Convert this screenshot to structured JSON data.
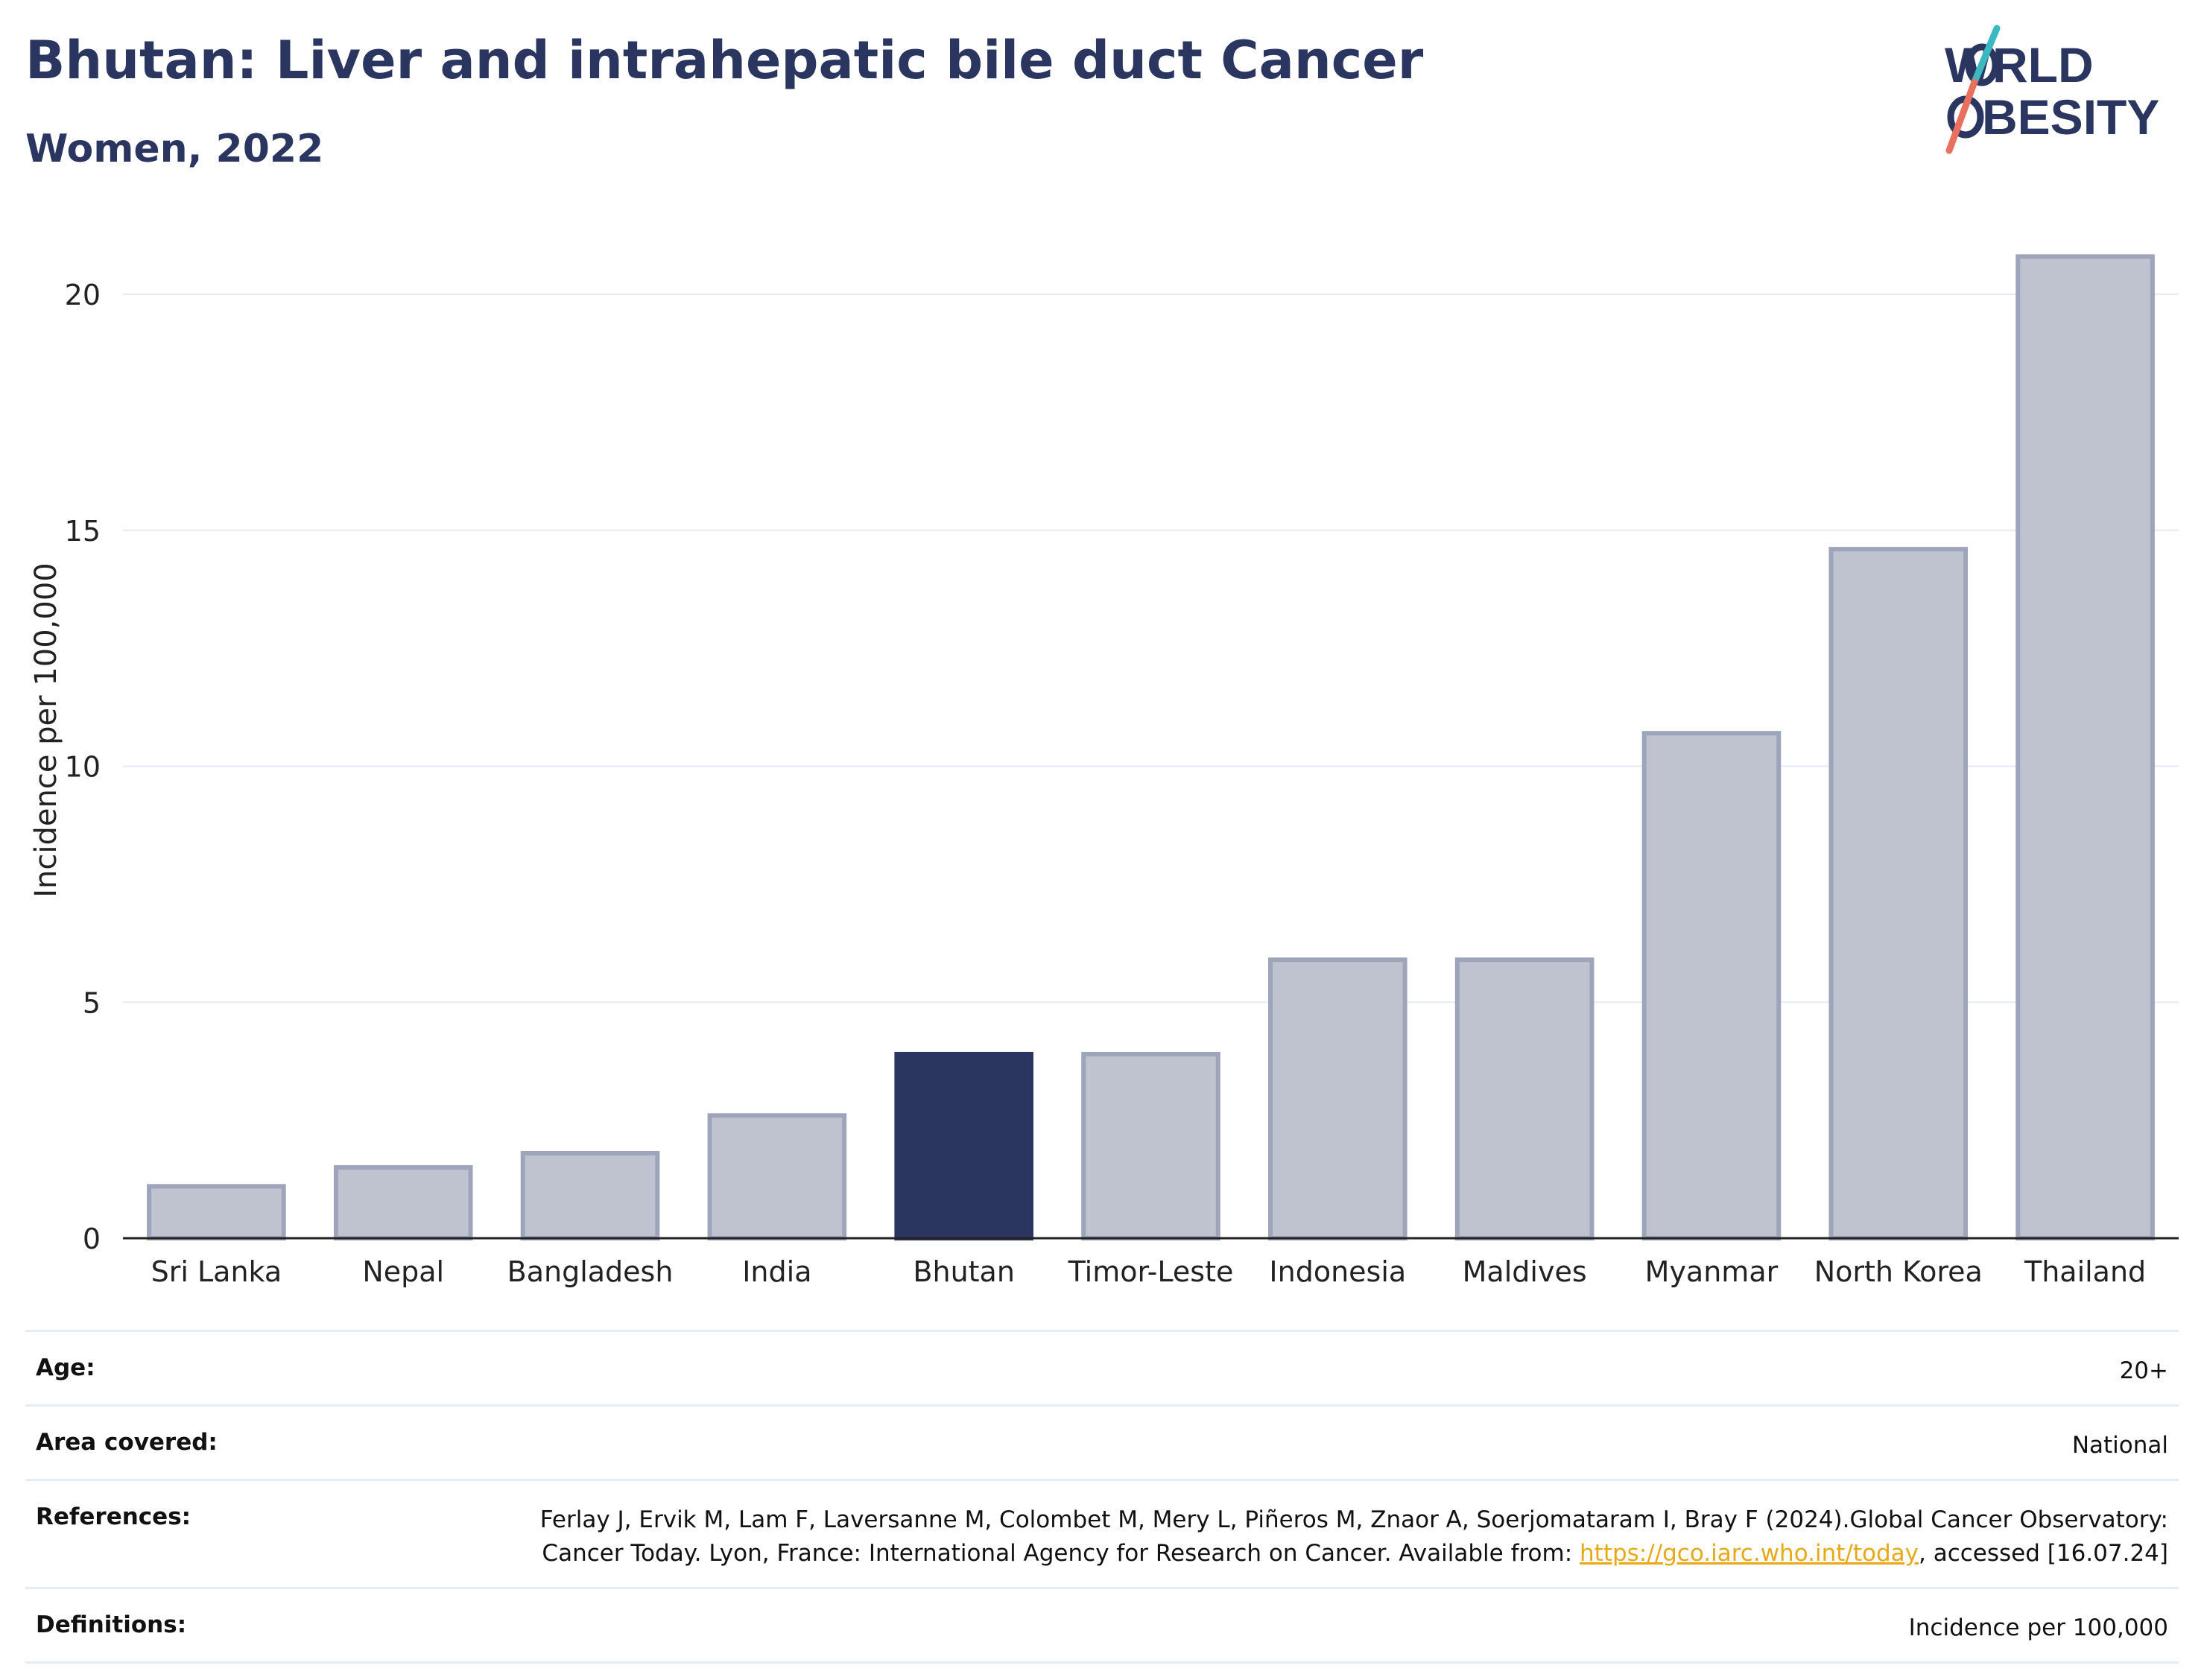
{
  "header": {
    "title": "Bhutan: Liver and intrahepatic bile duct Cancer",
    "subtitle": "Women, 2022",
    "logo_text": "WORLD OBESITY"
  },
  "colors": {
    "highlight": "#2b3660",
    "bar": "#bfc3d0",
    "bar_border": "#9ea4ba",
    "title": "#2b3660",
    "grid": "#e3ebf4",
    "link": "#e7a918",
    "logo_teal": "#3ab9c0",
    "logo_coral": "#e9705f"
  },
  "chart_data": {
    "type": "bar",
    "title": "Bhutan: Liver and intrahepatic bile duct Cancer",
    "subtitle": "Women, 2022",
    "xlabel": "",
    "ylabel": "Incidence per 100,000",
    "categories": [
      "Sri Lanka",
      "Nepal",
      "Bangladesh",
      "India",
      "Bhutan",
      "Timor-Leste",
      "Indonesia",
      "Maldives",
      "Myanmar",
      "North Korea",
      "Thailand"
    ],
    "values": [
      1.1,
      1.5,
      1.8,
      2.6,
      3.9,
      3.9,
      5.9,
      5.9,
      10.7,
      14.6,
      20.8
    ],
    "highlight": "Bhutan",
    "ylim": [
      0,
      21.5
    ],
    "yticks": [
      0,
      5,
      10,
      15,
      20
    ],
    "grid": true,
    "legend": "none"
  },
  "info": {
    "age_label": "Age:",
    "age_value": "20+",
    "area_label": "Area covered:",
    "area_value": "National",
    "references_label": "References:",
    "references_text": "Ferlay J, Ervik M, Lam F, Laversanne M, Colombet M, Mery L, Piñeros M, Znaor A, Soerjomataram I, Bray F (2024).Global Cancer Observatory: Cancer Today. Lyon, France: International Agency for Research on Cancer. Available from: ",
    "references_link": "https://gco.iarc.who.int/today",
    "references_tail": ", accessed [16.07.24]",
    "definitions_label": "Definitions:",
    "definitions_value": "Incidence per 100,000"
  }
}
